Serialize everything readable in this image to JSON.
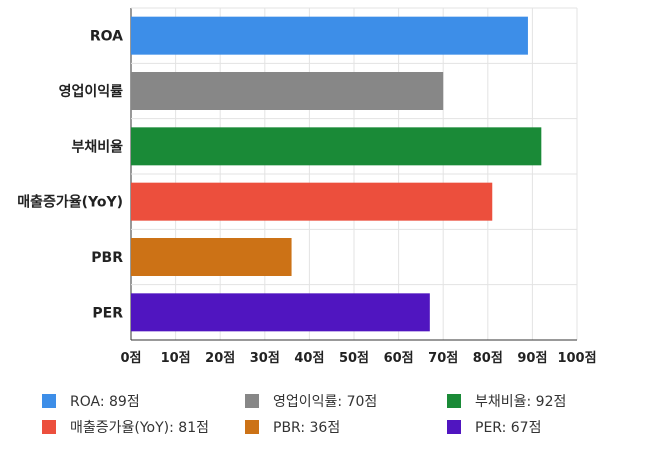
{
  "chart_data": {
    "type": "bar",
    "orientation": "horizontal",
    "categories": [
      "ROA",
      "영업이익률",
      "부채비율",
      "매출증가율(YoY)",
      "PBR",
      "PER"
    ],
    "values": [
      89,
      70,
      92,
      81,
      36,
      67
    ],
    "colors": [
      "#3d8ee8",
      "#878787",
      "#1a8a37",
      "#ec4f3d",
      "#cc7216",
      "#5015c0"
    ],
    "xlim": [
      0,
      100
    ],
    "xticks": [
      0,
      10,
      20,
      30,
      40,
      50,
      60,
      70,
      80,
      90,
      100
    ],
    "tick_suffix": "점",
    "grid": true,
    "legend_position": "bottom",
    "legend": [
      {
        "label": "ROA: 89점",
        "color": "#3d8ee8"
      },
      {
        "label": "영업이익률: 70점",
        "color": "#878787"
      },
      {
        "label": "부채비율: 92점",
        "color": "#1a8a37"
      },
      {
        "label": "매출증가율(YoY): 81점",
        "color": "#ec4f3d"
      },
      {
        "label": "PBR: 36점",
        "color": "#cc7216"
      },
      {
        "label": "PER: 67점",
        "color": "#5015c0"
      }
    ]
  }
}
